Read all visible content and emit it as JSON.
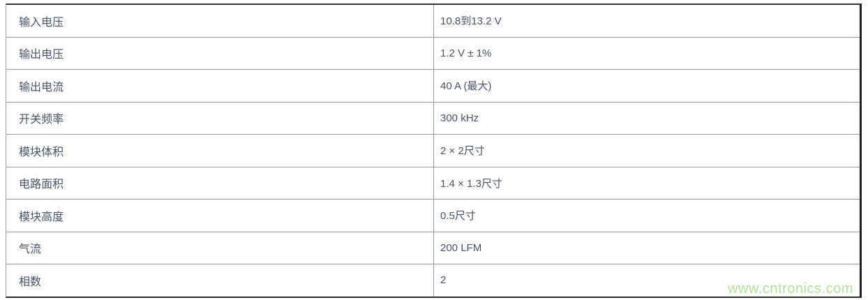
{
  "table": {
    "rows": [
      {
        "label": "输入电压",
        "value": "10.8到13.2 V"
      },
      {
        "label": "输出电压",
        "value": "1.2 V ± 1%"
      },
      {
        "label": "输出电流",
        "value": "40 A (最大)"
      },
      {
        "label": "开关频率",
        "value": "300 kHz"
      },
      {
        "label": "模块体积",
        "value": "2 × 2尺寸"
      },
      {
        "label": "电路面积",
        "value": "1.4 × 1.3尺寸"
      },
      {
        "label": "模块高度",
        "value": "0.5尺寸"
      },
      {
        "label": "气流",
        "value": "200 LFM"
      },
      {
        "label": "相数",
        "value": "2"
      }
    ]
  },
  "watermark": {
    "text": "www.cntronics.com",
    "color": "#b9dfa6"
  },
  "colors": {
    "text": "#4a5364",
    "inner_border": "#999999",
    "outer_border": "#2b2b2b",
    "background": "#ffffff"
  }
}
